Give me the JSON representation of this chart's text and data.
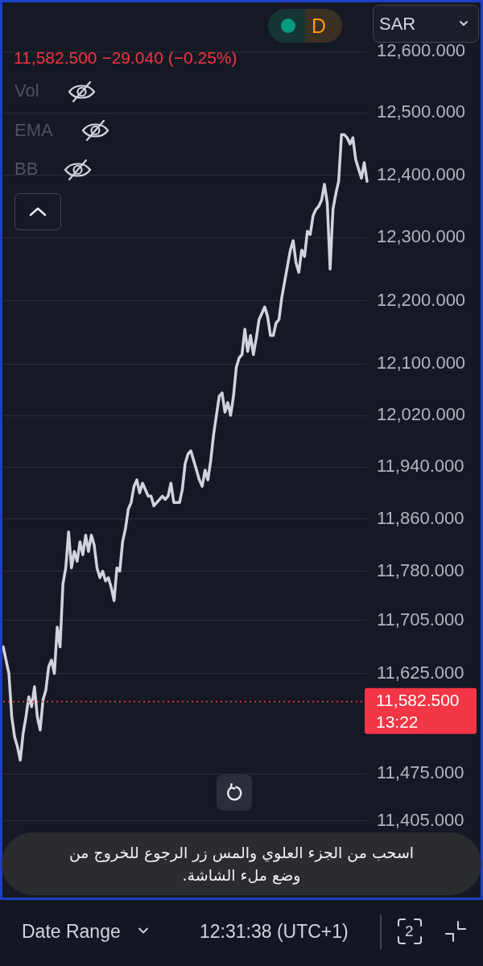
{
  "chart_data": {
    "type": "line",
    "subtitle": "11,582.500 −29.040 (−0.25%)",
    "categories": [
      null,
      null,
      null,
      null,
      null,
      null,
      null,
      null,
      null,
      null,
      null,
      null,
      null,
      null,
      null,
      null,
      null,
      null,
      null,
      null,
      null,
      null,
      null,
      null,
      null,
      null,
      null,
      null,
      null,
      null,
      null,
      null,
      null,
      null,
      null,
      null,
      null,
      null,
      null,
      null,
      null,
      null,
      null,
      null,
      null,
      null,
      null,
      null,
      null,
      null,
      null,
      null,
      null,
      null,
      null,
      null,
      null,
      null,
      null,
      null,
      null,
      null,
      null,
      null,
      null,
      null,
      null,
      null,
      null,
      null,
      null,
      null,
      null,
      null,
      null,
      null,
      null,
      null,
      null,
      null,
      null,
      null,
      null,
      null,
      null,
      null,
      null,
      null,
      null,
      null,
      null,
      null,
      null,
      null,
      null,
      null,
      null,
      null,
      null,
      null,
      null,
      null,
      null,
      null,
      null,
      null,
      null,
      null,
      null,
      null,
      null,
      null,
      null,
      null,
      null,
      null,
      null,
      null,
      null,
      null,
      null,
      null,
      null,
      null,
      null,
      null,
      null,
      null,
      null
    ],
    "values": [
      11665,
      11645,
      11625,
      11560,
      11530,
      11515,
      11495,
      11535,
      11560,
      11590,
      11575,
      11605,
      11560,
      11540,
      11585,
      11600,
      11635,
      11645,
      11625,
      11695,
      11665,
      11760,
      11785,
      11840,
      11785,
      11810,
      11795,
      11825,
      11805,
      11835,
      11810,
      11835,
      11820,
      11785,
      11770,
      11780,
      11765,
      11770,
      11755,
      11735,
      11785,
      11780,
      11825,
      11845,
      11875,
      11885,
      11910,
      11920,
      11900,
      11915,
      11905,
      11895,
      11895,
      11880,
      11885,
      11890,
      11895,
      11890,
      11895,
      11915,
      11885,
      11885,
      11885,
      11905,
      11945,
      11960,
      11965,
      11950,
      11935,
      11920,
      11910,
      11935,
      11920,
      11950,
      11990,
      12020,
      12050,
      12055,
      12025,
      12040,
      12020,
      12050,
      12095,
      12110,
      12115,
      12155,
      12120,
      12145,
      12115,
      12140,
      12170,
      12180,
      12190,
      12175,
      12145,
      12145,
      12165,
      12170,
      12205,
      12230,
      12255,
      12280,
      12295,
      12260,
      12245,
      12280,
      12270,
      12310,
      12305,
      12335,
      12345,
      12350,
      12360,
      12385,
      12355,
      12250,
      12345,
      12370,
      12390,
      12465,
      12465,
      12460,
      12450,
      12460,
      12425,
      12410,
      12395,
      12420,
      12390
    ],
    "color": "#d1d4dc",
    "marker": "none",
    "line_style": "solid",
    "log": true,
    "ylim": [
      11405,
      12600
    ],
    "yticks": [
      {
        "value": 11405,
        "label": "11,405.000"
      },
      {
        "value": 11475,
        "label": "11,475.000"
      },
      {
        "value": 11625,
        "label": "11,625.000"
      },
      {
        "value": 11705,
        "label": "11,705.000"
      },
      {
        "value": 11780,
        "label": "11,780.000"
      },
      {
        "value": 11860,
        "label": "11,860.000"
      },
      {
        "value": 11940,
        "label": "11,940.000"
      },
      {
        "value": 12020,
        "label": "12,020.000"
      },
      {
        "value": 12100,
        "label": "12,100.000"
      },
      {
        "value": 12200,
        "label": "12,200.000"
      },
      {
        "value": 12300,
        "label": "12,300.000"
      },
      {
        "value": 12400,
        "label": "12,400.000"
      },
      {
        "value": 12500,
        "label": "12,500.000"
      },
      {
        "value": 12600,
        "label": "12,600.000"
      }
    ],
    "grid": "y",
    "tick_labels": "y",
    "ref_lines": [
      {
        "axis": "y",
        "value": 11582.5,
        "label": "11,582.500\n13:22",
        "color": "#f23645",
        "line_style": "dotted"
      }
    ],
    "annotations": [
      "SAR",
      "D",
      "Vol",
      "EMA",
      "BB",
      "اسحب من الجزء العلوي والمس زر الرجوع للخروج من وضع ملء الشاشة.",
      "Date Range",
      "12:31:38 (UTC+1)",
      "2"
    ]
  }
}
